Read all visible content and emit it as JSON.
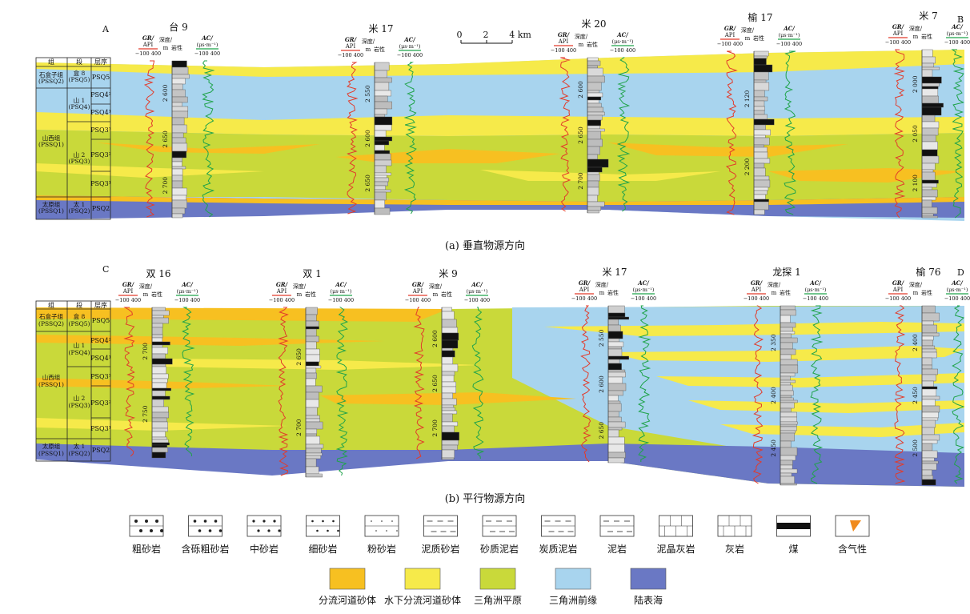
{
  "panelA": {
    "corner_left": "A",
    "corner_right": "B",
    "caption": "(a) 垂直物源方向",
    "scale": {
      "zero": "0",
      "mid": "2",
      "end": "4 km"
    },
    "wells": [
      {
        "name": "台 9",
        "depths": [
          "2 600",
          "2 650",
          "2 700"
        ]
      },
      {
        "name": "米 17",
        "depths": [
          "2 550",
          "2 600",
          "2 650"
        ]
      },
      {
        "name": "米 20",
        "depths": [
          "2 600",
          "2 650",
          "2 700"
        ]
      },
      {
        "name": "榆 17",
        "depths": [
          "2 120",
          "2 200"
        ]
      },
      {
        "name": "米 7",
        "depths": [
          "2 000",
          "2 050",
          "2 100"
        ]
      }
    ]
  },
  "panelB": {
    "corner_left": "C",
    "corner_right": "D",
    "caption": "(b) 平行物源方向",
    "wells": [
      {
        "name": "双 16",
        "depths": [
          "2 700",
          "2 750"
        ]
      },
      {
        "name": "双 1",
        "depths": [
          "2 650",
          "2 700"
        ]
      },
      {
        "name": "米 9",
        "depths": [
          "2 600",
          "2 650",
          "2 700"
        ]
      },
      {
        "name": "米 17",
        "depths": [
          "2 550",
          "2 600",
          "2 650"
        ]
      },
      {
        "name": "龙探 1",
        "depths": [
          "2 350",
          "2 400",
          "2 450"
        ]
      },
      {
        "name": "榆 76",
        "depths": [
          "2 400",
          "2 450",
          "2 500"
        ]
      }
    ]
  },
  "well_header": {
    "gr_label": "GR/",
    "gr_unit": "API",
    "gr_range": "−100 400",
    "depth_label": "深度/",
    "depth_unit": "m",
    "lith_label": "岩性",
    "ac_label": "AC/",
    "ac_unit": "(μs·m⁻¹)",
    "ac_range": "−100 400"
  },
  "strat_table": {
    "headers": [
      "组",
      "段",
      "层序"
    ],
    "formations": [
      "石盒子组\n(PSSQ2)",
      "山西组\n(PSSQ1)",
      "太原组\n(PSSQ1)"
    ],
    "members": [
      "盒 8\n(PSQ5)",
      "山 1\n(PSQ4)",
      "山 2\n(PSQ3)",
      "太 1\n(PSQ2)"
    ],
    "sequences": [
      "PSQ5",
      "PSQ4²",
      "PSQ4¹",
      "PSQ3³",
      "PSQ3²",
      "PSQ3¹",
      "PSQ2"
    ]
  },
  "lithology_legend": [
    "粗砂岩",
    "含砾粗砂岩",
    "中砂岩",
    "细砂岩",
    "粉砂岩",
    "泥质砂岩",
    "砂质泥岩",
    "炭质泥岩",
    "泥岩",
    "泥晶灰岩",
    "灰岩",
    "煤",
    "含气性"
  ],
  "facies_legend": [
    {
      "label": "分流河道砂体",
      "color": "#f7c021"
    },
    {
      "label": "水下分流河道砂体",
      "color": "#f6ea4a"
    },
    {
      "label": "三角洲平原",
      "color": "#c9d93a"
    },
    {
      "label": "三角洲前缘",
      "color": "#a8d4ee"
    },
    {
      "label": "陆表海",
      "color": "#6a78c4"
    }
  ],
  "colors": {
    "gr_curve": "#e23b2b",
    "ac_curve": "#1fa34a",
    "coal": "#111111",
    "gas": "#f08a1d"
  }
}
